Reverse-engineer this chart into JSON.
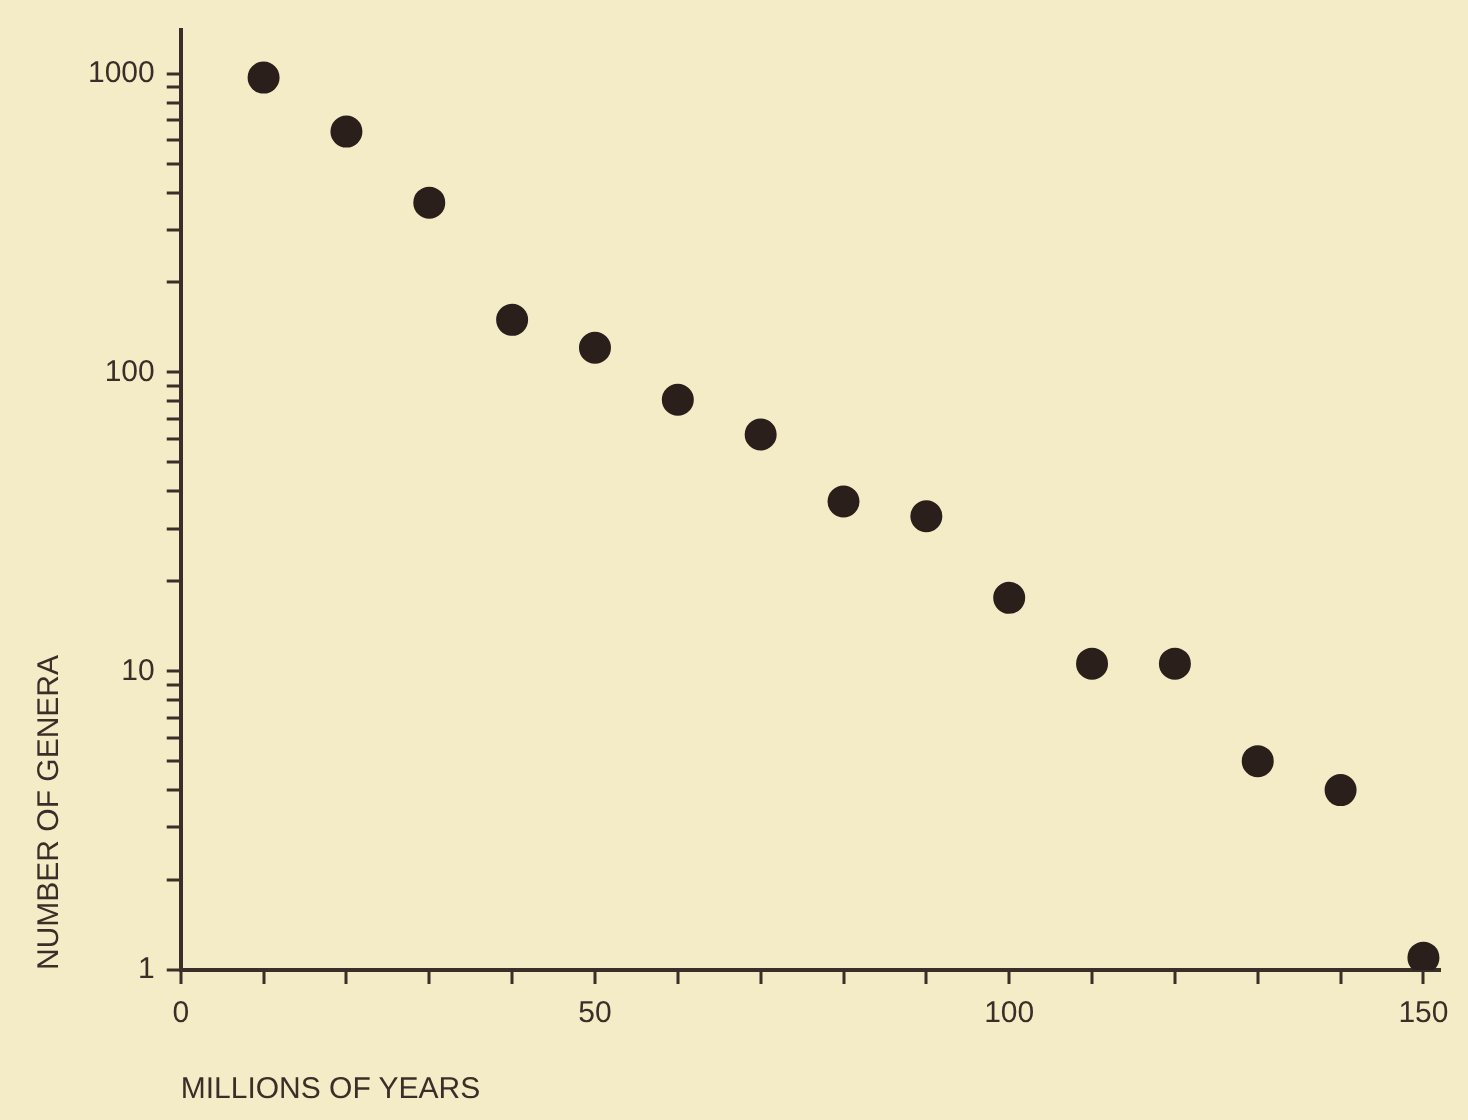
{
  "chart_data": {
    "type": "scatter",
    "xlabel": "MILLIONS OF YEARS",
    "ylabel": "NUMBER OF GENERA",
    "x": [
      10,
      20,
      30,
      40,
      50,
      60,
      70,
      80,
      90,
      100,
      110,
      120,
      130,
      140,
      150
    ],
    "series": [
      {
        "color": "#2b1f1c",
        "values": [
          970,
          640,
          370,
          150,
          121,
          81,
          62,
          37,
          33,
          17.6,
          10.6,
          10.6,
          5,
          4,
          1.1
        ]
      }
    ],
    "log": "y",
    "marker": "circle",
    "grid": false,
    "legend": false,
    "xlim": [
      0,
      152
    ],
    "xticks": [
      0,
      {
        "value": 10,
        "label": null
      },
      {
        "value": 20,
        "label": null
      },
      {
        "value": 30,
        "label": null
      },
      {
        "value": 40,
        "label": null
      },
      50,
      {
        "value": 60,
        "label": null
      },
      {
        "value": 70,
        "label": null
      },
      {
        "value": 80,
        "label": null
      },
      {
        "value": 90,
        "label": null
      },
      100,
      {
        "value": 110,
        "label": null
      },
      {
        "value": 120,
        "label": null
      },
      {
        "value": 130,
        "label": null
      },
      {
        "value": 140,
        "label": null
      },
      150
    ],
    "ylim": [
      1,
      1400
    ],
    "yticks": [
      1,
      {
        "value": 2,
        "label": null
      },
      {
        "value": 3,
        "label": null
      },
      {
        "value": 4,
        "label": null
      },
      {
        "value": 5,
        "label": null
      },
      {
        "value": 6,
        "label": null
      },
      {
        "value": 7,
        "label": null
      },
      {
        "value": 8,
        "label": null
      },
      {
        "value": 9,
        "label": null
      },
      10,
      {
        "value": 20,
        "label": null
      },
      {
        "value": 30,
        "label": null
      },
      {
        "value": 40,
        "label": null
      },
      {
        "value": 50,
        "label": null
      },
      {
        "value": 60,
        "label": null
      },
      {
        "value": 70,
        "label": null
      },
      {
        "value": 80,
        "label": null
      },
      {
        "value": 90,
        "label": null
      },
      100,
      {
        "value": 200,
        "label": null
      },
      {
        "value": 300,
        "label": null
      },
      {
        "value": 400,
        "label": null
      },
      {
        "value": 500,
        "label": null
      },
      {
        "value": 600,
        "label": null
      },
      {
        "value": 700,
        "label": null
      },
      {
        "value": 800,
        "label": null
      },
      {
        "value": 900,
        "label": null
      },
      1000
    ]
  }
}
